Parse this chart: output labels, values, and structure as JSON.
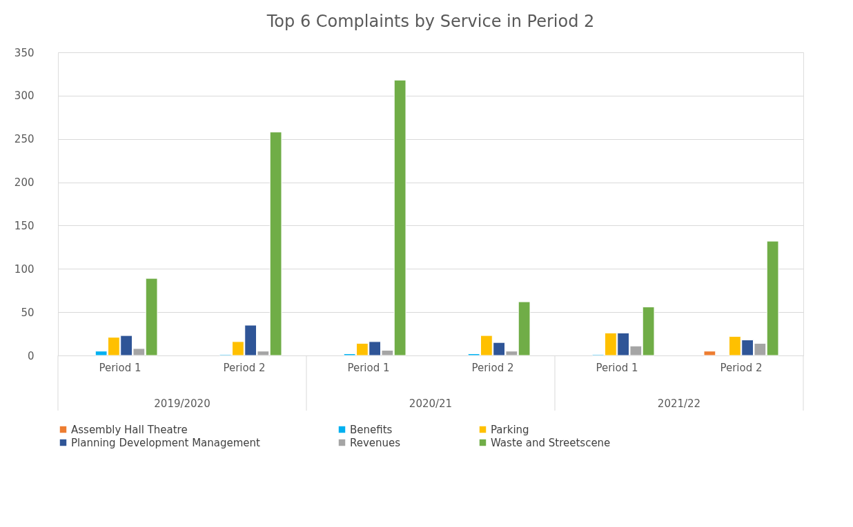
{
  "chart_data": {
    "type": "bar",
    "title": "Top 6 Complaints by Service in Period 2",
    "categories": [
      "Period 1",
      "Period 2",
      "Period 1",
      "Period 2",
      "Period 1",
      "Period 2"
    ],
    "series": [
      {
        "name": "Assembly Hall Theatre",
        "color": "#ed7d31",
        "values": [
          null,
          null,
          null,
          null,
          null,
          5
        ]
      },
      {
        "name": "Benefits",
        "color": "#00b0f0",
        "values": [
          5,
          1,
          2,
          2,
          1,
          null
        ]
      },
      {
        "name": "Parking",
        "color": "#ffc000",
        "values": [
          21,
          16,
          14,
          23,
          26,
          22
        ]
      },
      {
        "name": "Planning Development Management",
        "color": "#2f5597",
        "values": [
          23,
          35,
          16,
          15,
          26,
          18
        ]
      },
      {
        "name": "Revenues",
        "color": "#a5a5a5",
        "values": [
          8,
          5,
          6,
          5,
          11,
          14
        ]
      },
      {
        "name": "Waste and Streetscene",
        "color": "#70ad47",
        "values": [
          89,
          258,
          318,
          62,
          56,
          132
        ]
      }
    ],
    "annotations": [
      "2019/2020",
      "2020/21",
      "2021/22"
    ],
    "ylim": [
      0,
      350
    ],
    "yticks": [
      0,
      50,
      100,
      150,
      200,
      250,
      300,
      350
    ],
    "grid": "y",
    "legend": "bottom"
  }
}
